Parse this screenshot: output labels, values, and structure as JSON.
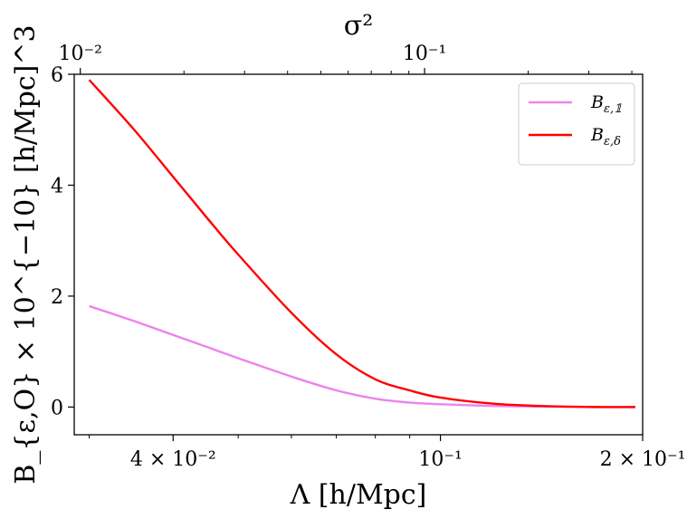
{
  "chart_data": {
    "type": "line",
    "xlabel": "Λ [h/Mpc]",
    "ylabel": "B_{ε,O} × 10^{−10} [h/Mpc]^3",
    "top_xlabel": "σ²",
    "xscale": "log",
    "xlim": [
      0.0285,
      0.2
    ],
    "ylim": [
      -0.5,
      6.0
    ],
    "x_ticks": [
      {
        "value": 0.04,
        "label": "4 × 10⁻²"
      },
      {
        "value": 0.1,
        "label": "10⁻¹"
      },
      {
        "value": 0.2,
        "label": "2 × 10⁻¹"
      }
    ],
    "y_ticks": [
      {
        "value": 0,
        "label": "0"
      },
      {
        "value": 2,
        "label": "2"
      },
      {
        "value": 4,
        "label": "4"
      },
      {
        "value": 6,
        "label": "6"
      }
    ],
    "top_axis": {
      "scale": "log",
      "lim": [
        0.0096,
        0.43
      ],
      "ticks": [
        {
          "value": 0.01,
          "label": "10⁻²"
        },
        {
          "value": 0.1,
          "label": "10⁻¹"
        }
      ]
    },
    "legend_position": "top-right",
    "grid": false,
    "series": [
      {
        "name": "B_{ε,𝟙}",
        "legend_main": "B",
        "legend_sub": "ε,𝟙",
        "color": "#ee82ee",
        "x": [
          0.03,
          0.035,
          0.04,
          0.045,
          0.05,
          0.06,
          0.07,
          0.08,
          0.09,
          0.1,
          0.12,
          0.14,
          0.17,
          0.195
        ],
        "y": [
          1.82,
          1.55,
          1.3,
          1.08,
          0.88,
          0.55,
          0.3,
          0.15,
          0.08,
          0.05,
          0.02,
          0.01,
          0.0,
          0.0
        ]
      },
      {
        "name": "B_{ε,δ}",
        "legend_main": "B",
        "legend_sub": "ε,δ",
        "color": "#ff0000",
        "x": [
          0.03,
          0.035,
          0.04,
          0.045,
          0.05,
          0.06,
          0.07,
          0.08,
          0.09,
          0.1,
          0.12,
          0.14,
          0.17,
          0.195
        ],
        "y": [
          5.9,
          5.0,
          4.15,
          3.4,
          2.75,
          1.7,
          0.95,
          0.5,
          0.3,
          0.17,
          0.06,
          0.02,
          0.0,
          0.0
        ]
      }
    ]
  }
}
